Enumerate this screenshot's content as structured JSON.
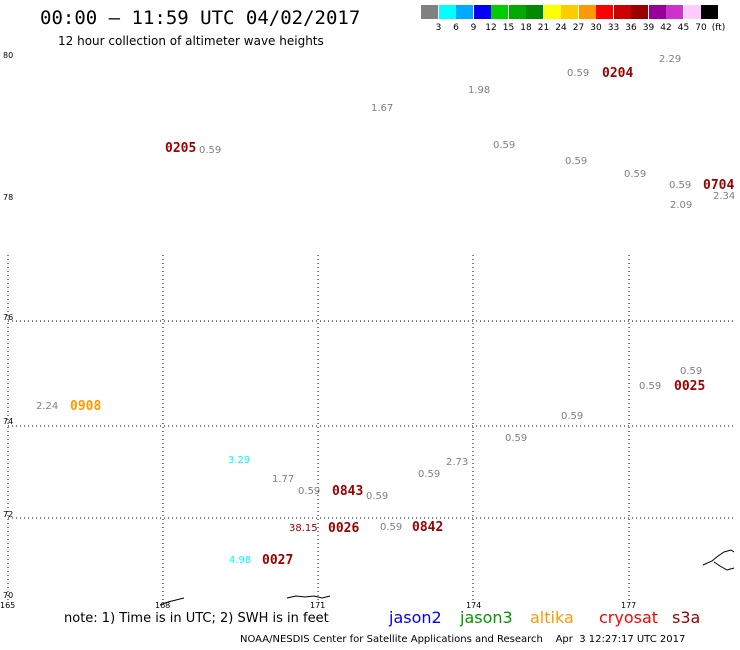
{
  "title": "00:00 – 11:59 UTC 04/02/2017",
  "subtitle": "12 hour collection of altimeter wave heights",
  "colorbar": {
    "colors": [
      "#808080",
      "#00ffff",
      "#00aaff",
      "#0000ff",
      "#00cc00",
      "#00aa00",
      "#008800",
      "#ffff00",
      "#ffcc00",
      "#ff9900",
      "#ff0000",
      "#cc0000",
      "#990000",
      "#990099",
      "#cc33cc",
      "#ffccff",
      "#000000"
    ],
    "labels": [
      "3",
      "6",
      "9",
      "12",
      "15",
      "18",
      "21",
      "24",
      "27",
      "30",
      "33",
      "36",
      "39",
      "42",
      "45",
      "70",
      "(ft)"
    ]
  },
  "map": {
    "y_labels": [
      "80",
      "78",
      "76",
      "74",
      "72",
      "70"
    ],
    "x_labels": [
      "165",
      "168",
      "171",
      "174",
      "177"
    ],
    "coastline": "land-outline"
  },
  "observations": [
    {
      "text": "0.59",
      "color": "#808080",
      "kind": "swh"
    },
    {
      "text": "0204",
      "color": "#990000",
      "kind": "sat"
    },
    {
      "text": "2.29",
      "color": "#808080",
      "kind": "swh"
    },
    {
      "text": "1.98",
      "color": "#808080",
      "kind": "swh"
    },
    {
      "text": "1.67",
      "color": "#808080",
      "kind": "swh"
    },
    {
      "text": "0.59",
      "color": "#808080",
      "kind": "swh"
    },
    {
      "text": "0205",
      "color": "#990000",
      "kind": "sat"
    },
    {
      "text": "0.59",
      "color": "#808080",
      "kind": "swh"
    },
    {
      "text": "0.59",
      "color": "#808080",
      "kind": "swh"
    },
    {
      "text": "0.59",
      "color": "#808080",
      "kind": "swh"
    },
    {
      "text": "0.59",
      "color": "#808080",
      "kind": "swh"
    },
    {
      "text": "0704",
      "color": "#990000",
      "kind": "sat"
    },
    {
      "text": "2.34",
      "color": "#808080",
      "kind": "swh"
    },
    {
      "text": "2.09",
      "color": "#808080",
      "kind": "swh"
    },
    {
      "text": "0.59",
      "color": "#808080",
      "kind": "swh"
    },
    {
      "text": "0.59",
      "color": "#808080",
      "kind": "swh"
    },
    {
      "text": "0025",
      "color": "#990000",
      "kind": "sat"
    },
    {
      "text": "2.24",
      "color": "#808080",
      "kind": "swh"
    },
    {
      "text": "0908",
      "color": "#ff9900",
      "kind": "sat"
    },
    {
      "text": "0.59",
      "color": "#808080",
      "kind": "swh"
    },
    {
      "text": "0.59",
      "color": "#808080",
      "kind": "swh"
    },
    {
      "text": "3.29",
      "color": "#00ffff",
      "kind": "swh"
    },
    {
      "text": "2.73",
      "color": "#808080",
      "kind": "swh"
    },
    {
      "text": "0.59",
      "color": "#808080",
      "kind": "swh"
    },
    {
      "text": "1.77",
      "color": "#808080",
      "kind": "swh"
    },
    {
      "text": "0.59",
      "color": "#808080",
      "kind": "swh"
    },
    {
      "text": "0843",
      "color": "#990000",
      "kind": "sat"
    },
    {
      "text": "0.59",
      "color": "#808080",
      "kind": "swh"
    },
    {
      "text": "38.15",
      "color": "#990000",
      "kind": "swh"
    },
    {
      "text": "0026",
      "color": "#990000",
      "kind": "sat"
    },
    {
      "text": "0.59",
      "color": "#808080",
      "kind": "swh"
    },
    {
      "text": "0842",
      "color": "#990000",
      "kind": "sat"
    },
    {
      "text": "4.98",
      "color": "#00ffff",
      "kind": "swh"
    },
    {
      "text": "0027",
      "color": "#990000",
      "kind": "sat"
    }
  ],
  "note": "note: 1) Time is in UTC; 2) SWH is in feet",
  "legend": [
    {
      "label": "jason2",
      "color": "#0000ff"
    },
    {
      "label": "jason3",
      "color": "#009900"
    },
    {
      "label": "altika",
      "color": "#ff9900"
    },
    {
      "label": "cryosat",
      "color": "#ff0000"
    },
    {
      "label": "s3a",
      "color": "#990000"
    }
  ],
  "footer": "NOAA/NESDIS Center for Satellite Applications and Research    Apr  3 12:27:17 UTC 2017"
}
